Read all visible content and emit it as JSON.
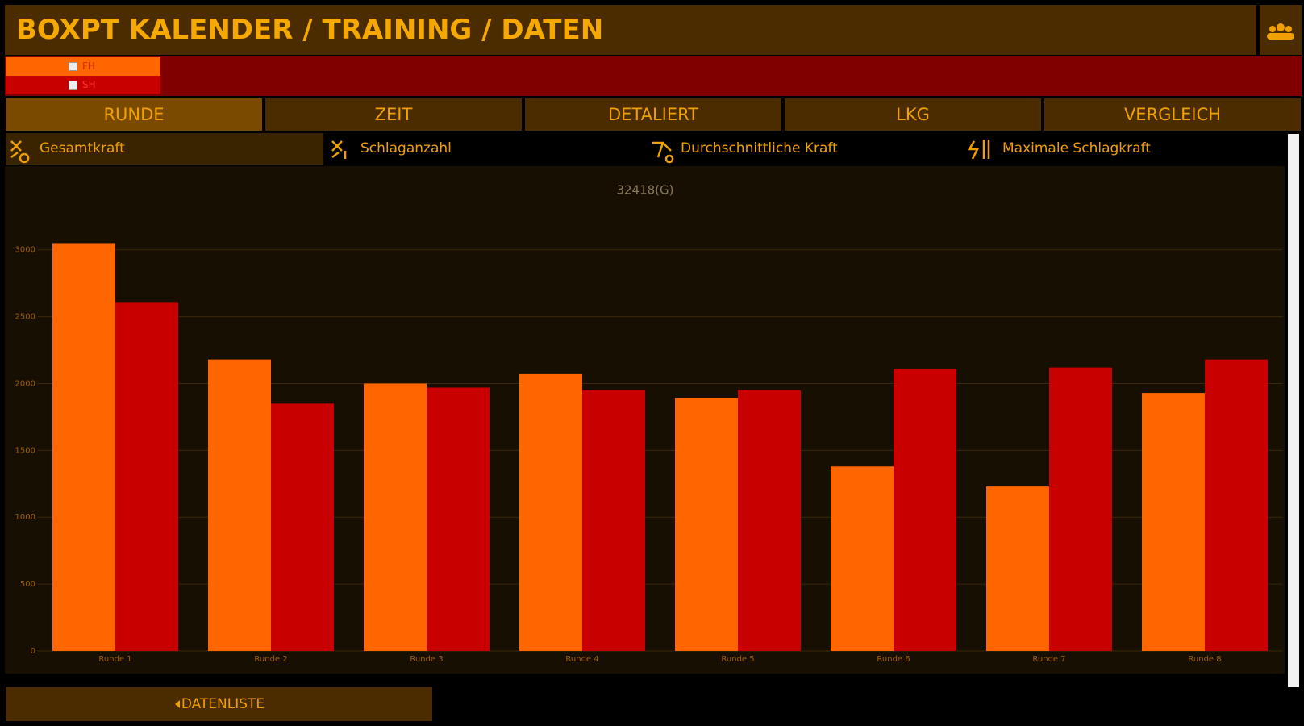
{
  "header": {
    "title": "BOXPT KALENDER / TRAINING / DATEN"
  },
  "tabs": [
    "RUNDE",
    "ZEIT",
    "DETALIERT",
    "LKG",
    "VERGLEICH"
  ],
  "subtabs": [
    "Gesamtkraft",
    "Schlaganzahl",
    "Durchschnittliche Kraft",
    "Maximale Schlagkraft"
  ],
  "button": "DATENLISTE",
  "chart_data": {
    "type": "bar",
    "title": "32418(G)",
    "categories": [
      "Runde 1",
      "Runde 2",
      "Runde 3",
      "Runde 4",
      "Runde 5",
      "Runde 6",
      "Runde 7",
      "Runde 8"
    ],
    "series": [
      {
        "name": "FH",
        "color": "#ff6600",
        "values": [
          3050,
          2180,
          2000,
          2070,
          1890,
          1380,
          1230,
          1930
        ]
      },
      {
        "name": "SH",
        "color": "#c80000",
        "values": [
          2610,
          1850,
          1970,
          1950,
          1950,
          2110,
          2120,
          2180
        ]
      }
    ],
    "ylim": [
      0,
      3300
    ],
    "yticks": [
      0,
      500,
      1000,
      1500,
      2000,
      2500,
      3000
    ],
    "grid": true
  }
}
